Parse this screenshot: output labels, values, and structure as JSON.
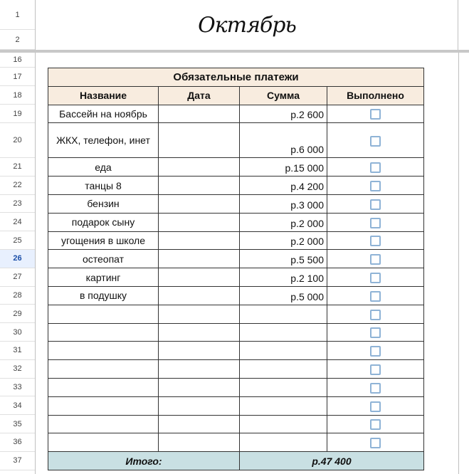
{
  "row_numbers": [
    "1",
    "2",
    "16",
    "17",
    "18",
    "19",
    "20",
    "21",
    "22",
    "23",
    "24",
    "25",
    "26",
    "27",
    "28",
    "29",
    "30",
    "31",
    "32",
    "33",
    "34",
    "35",
    "36",
    "37"
  ],
  "selected_row": "26",
  "title": "Октябрь",
  "table": {
    "heading": "Обязательные платежи",
    "columns": [
      "Название",
      "Дата",
      "Сумма",
      "Выполнено"
    ],
    "rows": [
      {
        "name": "Бассейн на ноябрь",
        "date": "",
        "sum": "р.2 600",
        "done": false
      },
      {
        "name": "ЖКХ, телефон, инет",
        "date": "",
        "sum": "р.6 000",
        "done": false
      },
      {
        "name": "еда",
        "date": "",
        "sum": "р.15 000",
        "done": false
      },
      {
        "name": "танцы 8",
        "date": "",
        "sum": "р.4 200",
        "done": false
      },
      {
        "name": "бензин",
        "date": "",
        "sum": "р.3 000",
        "done": false
      },
      {
        "name": "подарок сыну",
        "date": "",
        "sum": "р.2 000",
        "done": false
      },
      {
        "name": "угощения в школе",
        "date": "",
        "sum": "р.2 000",
        "done": false
      },
      {
        "name": "остеопат",
        "date": "",
        "sum": "р.5 500",
        "done": false
      },
      {
        "name": "картинг",
        "date": "",
        "sum": "р.2 100",
        "done": false
      },
      {
        "name": "в подушку",
        "date": "",
        "sum": "р.5 000",
        "done": false
      },
      {
        "name": "",
        "date": "",
        "sum": "",
        "done": false
      },
      {
        "name": "",
        "date": "",
        "sum": "",
        "done": false
      },
      {
        "name": "",
        "date": "",
        "sum": "",
        "done": false
      },
      {
        "name": "",
        "date": "",
        "sum": "",
        "done": false
      },
      {
        "name": "",
        "date": "",
        "sum": "",
        "done": false
      },
      {
        "name": "",
        "date": "",
        "sum": "",
        "done": false
      },
      {
        "name": "",
        "date": "",
        "sum": "",
        "done": false
      },
      {
        "name": "",
        "date": "",
        "sum": "",
        "done": false
      }
    ],
    "total_label": "Итого:",
    "total_value": "р.47 400"
  },
  "colors": {
    "header_bg": "#f8ecdf",
    "total_bg": "#c9e0e3",
    "checkbox": "#8fb3d6"
  }
}
